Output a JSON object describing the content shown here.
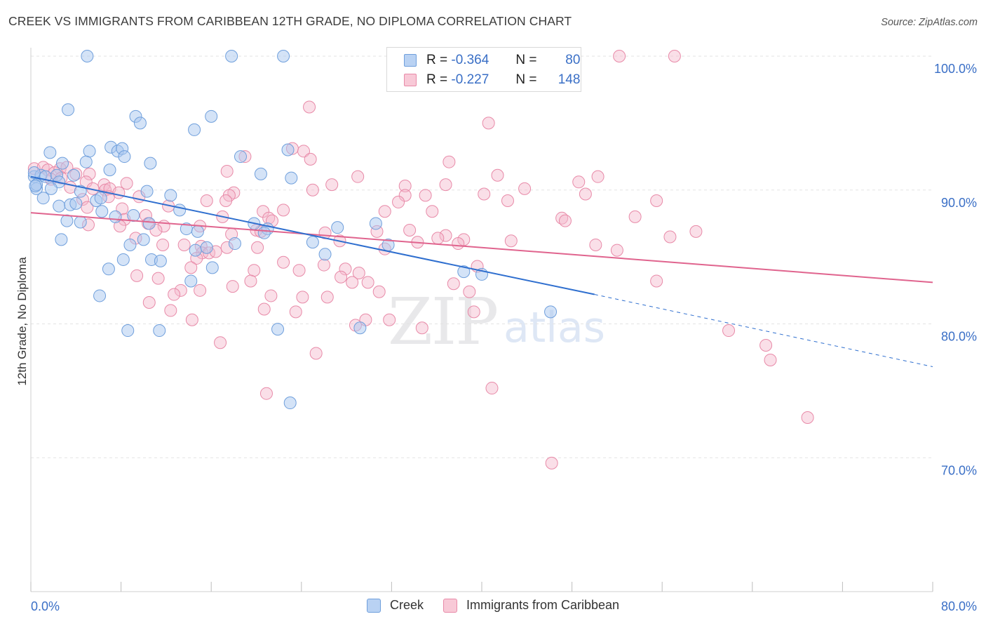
{
  "header": {
    "title": "CREEK VS IMMIGRANTS FROM CARIBBEAN 12TH GRADE, NO DIPLOMA CORRELATION CHART",
    "source": "Source: ZipAtlas.com"
  },
  "legend_box": {
    "rows": [
      {
        "r_label": "R =",
        "r_value": "-0.364",
        "n_label": "N =",
        "n_value": "80"
      },
      {
        "r_label": "R =",
        "r_value": "-0.227",
        "n_label": "N =",
        "n_value": "148"
      }
    ]
  },
  "watermark": {
    "zip": "ZIP",
    "atlas": "atlas"
  },
  "colors": {
    "creek_fill": "#a9c8f0",
    "creek_stroke": "#6f9fdc",
    "creek_line": "#2f6fcf",
    "carib_fill": "#f5b8cc",
    "carib_stroke": "#e88aa8",
    "carib_line": "#e0648e",
    "axis_label": "#3a6fc6",
    "grid": "#e3e3e3"
  },
  "chart_data": {
    "type": "scatter",
    "title": "CREEK VS IMMIGRANTS FROM CARIBBEAN 12TH GRADE, NO DIPLOMA CORRELATION CHART",
    "xlabel": "",
    "ylabel": "12th Grade, No Diploma",
    "xlim": [
      0,
      80
    ],
    "ylim": [
      60,
      100
    ],
    "x_tick_labels": [
      "0.0%",
      "80.0%"
    ],
    "y_ticks": [
      {
        "value": 100,
        "label": "100.0%"
      },
      {
        "value": 90,
        "label": "90.0%"
      },
      {
        "value": 80,
        "label": "80.0%"
      },
      {
        "value": 70,
        "label": "70.0%"
      }
    ],
    "grid": true,
    "legend_position": "bottom",
    "series": [
      {
        "name": "Creek",
        "r": -0.364,
        "n": 80,
        "trend": {
          "x0": 0,
          "y0": 91.0,
          "x1": 50,
          "y1": 82.2,
          "dash_to_x": 80,
          "dash_to_y": 76.8
        },
        "points": [
          [
            5,
            100
          ],
          [
            17.8,
            100
          ],
          [
            22.4,
            100
          ],
          [
            3.3,
            96
          ],
          [
            9.3,
            95.5
          ],
          [
            16,
            95.5
          ],
          [
            9.7,
            95
          ],
          [
            14.5,
            94.5
          ],
          [
            1.7,
            92.8
          ],
          [
            5.2,
            92.9
          ],
          [
            7.1,
            93.2
          ],
          [
            7.7,
            92.9
          ],
          [
            8.1,
            93.1
          ],
          [
            8.3,
            92.5
          ],
          [
            18.6,
            92.5
          ],
          [
            22.8,
            93
          ],
          [
            2.8,
            92
          ],
          [
            4.9,
            92.1
          ],
          [
            10.6,
            92
          ],
          [
            7,
            91.5
          ],
          [
            20.4,
            91.2
          ],
          [
            23.1,
            90.9
          ],
          [
            0.3,
            91
          ],
          [
            0.9,
            91.1
          ],
          [
            1.3,
            91
          ],
          [
            2.3,
            91.1
          ],
          [
            3.8,
            91.1
          ],
          [
            2.5,
            90.6
          ],
          [
            0.5,
            90.1
          ],
          [
            1.8,
            90.1
          ],
          [
            0.5,
            90.4
          ],
          [
            4.4,
            89.9
          ],
          [
            10.3,
            89.9
          ],
          [
            12.4,
            89.6
          ],
          [
            1.1,
            89.4
          ],
          [
            5.8,
            89.2
          ],
          [
            6.2,
            89.4
          ],
          [
            2.5,
            88.8
          ],
          [
            3.5,
            88.9
          ],
          [
            4,
            89
          ],
          [
            13.2,
            88.5
          ],
          [
            6.3,
            88.4
          ],
          [
            7.5,
            88
          ],
          [
            9.1,
            88.1
          ],
          [
            3.2,
            87.7
          ],
          [
            4.4,
            87.6
          ],
          [
            10.5,
            87.5
          ],
          [
            19.8,
            87.5
          ],
          [
            13.8,
            87.1
          ],
          [
            14.8,
            86.9
          ],
          [
            21,
            87.1
          ],
          [
            27.2,
            87.2
          ],
          [
            30.6,
            87.5
          ],
          [
            2.7,
            86.3
          ],
          [
            8.8,
            85.9
          ],
          [
            10,
            86.3
          ],
          [
            14.6,
            85.5
          ],
          [
            15.6,
            85.7
          ],
          [
            18.1,
            86
          ],
          [
            25,
            86.1
          ],
          [
            31.7,
            85.9
          ],
          [
            26.1,
            85.2
          ],
          [
            8.2,
            84.8
          ],
          [
            10.7,
            84.8
          ],
          [
            11.5,
            84.7
          ],
          [
            6.9,
            84.1
          ],
          [
            16.1,
            84.2
          ],
          [
            38.4,
            83.9
          ],
          [
            40,
            83.7
          ],
          [
            14.2,
            83.2
          ],
          [
            6.1,
            82.1
          ],
          [
            46.1,
            80.9
          ],
          [
            8.6,
            79.5
          ],
          [
            11.4,
            79.5
          ],
          [
            21.9,
            79.6
          ],
          [
            29.2,
            79.7
          ],
          [
            23,
            74.1
          ],
          [
            0.4,
            90.3
          ],
          [
            0.3,
            91.3
          ],
          [
            20.7,
            86.8
          ]
        ]
      },
      {
        "name": "Immigrants from Caribbean",
        "r": -0.227,
        "n": 148,
        "trend": {
          "x0": 0,
          "y0": 88.3,
          "x1": 80,
          "y1": 83.1
        },
        "points": [
          [
            52.2,
            100
          ],
          [
            57.1,
            100
          ],
          [
            24.7,
            96.2
          ],
          [
            40.6,
            95
          ],
          [
            23.2,
            93.1
          ],
          [
            24.2,
            92.9
          ],
          [
            19,
            92.5
          ],
          [
            24.8,
            92.3
          ],
          [
            37.1,
            92.1
          ],
          [
            0.3,
            91.6
          ],
          [
            1.1,
            91.7
          ],
          [
            1.5,
            91.5
          ],
          [
            2.6,
            91.6
          ],
          [
            3.2,
            91.7
          ],
          [
            2.1,
            91.3
          ],
          [
            4,
            91.2
          ],
          [
            5.2,
            91.2
          ],
          [
            17.4,
            91.4
          ],
          [
            41.4,
            91.1
          ],
          [
            29,
            91
          ],
          [
            50.3,
            91
          ],
          [
            1.8,
            90.8
          ],
          [
            2.7,
            90.9
          ],
          [
            4.9,
            90.6
          ],
          [
            6.5,
            90.4
          ],
          [
            8.5,
            90.5
          ],
          [
            26.7,
            90.4
          ],
          [
            33.2,
            90.3
          ],
          [
            36.8,
            90.4
          ],
          [
            48.6,
            90.6
          ],
          [
            3.5,
            90.2
          ],
          [
            5.5,
            90.1
          ],
          [
            6.6,
            90
          ],
          [
            7,
            90.1
          ],
          [
            25,
            90
          ],
          [
            43.8,
            90.1
          ],
          [
            7.8,
            89.8
          ],
          [
            18,
            89.8
          ],
          [
            17.6,
            89.6
          ],
          [
            33.2,
            89.6
          ],
          [
            35,
            89.6
          ],
          [
            40.2,
            89.7
          ],
          [
            49.2,
            89.7
          ],
          [
            4.6,
            89.3
          ],
          [
            6.9,
            89.5
          ],
          [
            9.6,
            89.5
          ],
          [
            15.6,
            89.2
          ],
          [
            17.3,
            89.2
          ],
          [
            32.6,
            89.1
          ],
          [
            42.3,
            89.2
          ],
          [
            55.5,
            89.2
          ],
          [
            5,
            88.7
          ],
          [
            8.1,
            88.6
          ],
          [
            12.2,
            88.8
          ],
          [
            22.4,
            88.5
          ],
          [
            20.6,
            88.4
          ],
          [
            31.4,
            88.4
          ],
          [
            35.6,
            88.4
          ],
          [
            10.2,
            88.1
          ],
          [
            17,
            88
          ],
          [
            21.1,
            87.9
          ],
          [
            47.1,
            87.9
          ],
          [
            8.3,
            87.8
          ],
          [
            21.4,
            87.7
          ],
          [
            47.4,
            87.7
          ],
          [
            53.6,
            88
          ],
          [
            10.4,
            87.5
          ],
          [
            5.1,
            87.4
          ],
          [
            7.9,
            87.3
          ],
          [
            11.8,
            87.3
          ],
          [
            15,
            87.3
          ],
          [
            20,
            87
          ],
          [
            11.1,
            87
          ],
          [
            20.4,
            86.9
          ],
          [
            17.8,
            86.7
          ],
          [
            30.7,
            86.9
          ],
          [
            26.1,
            86.8
          ],
          [
            33.6,
            87
          ],
          [
            36.8,
            86.6
          ],
          [
            59,
            86.9
          ],
          [
            56.7,
            86.5
          ],
          [
            36.1,
            86.4
          ],
          [
            9.3,
            86.4
          ],
          [
            38.4,
            86.3
          ],
          [
            27.4,
            86.2
          ],
          [
            34.3,
            86.1
          ],
          [
            37.9,
            86
          ],
          [
            42.6,
            86.2
          ],
          [
            15.1,
            85.8
          ],
          [
            17.4,
            85.7
          ],
          [
            11.7,
            85.9
          ],
          [
            13.6,
            85.9
          ],
          [
            20.1,
            85.7
          ],
          [
            31.4,
            85.6
          ],
          [
            50.1,
            85.9
          ],
          [
            52,
            85.5
          ],
          [
            15.2,
            85.3
          ],
          [
            15.8,
            85.3
          ],
          [
            16.4,
            85.4
          ],
          [
            14.7,
            84.9
          ],
          [
            22.4,
            84.6
          ],
          [
            26,
            84.4
          ],
          [
            27.9,
            84.1
          ],
          [
            14.2,
            84.2
          ],
          [
            19.8,
            84
          ],
          [
            23.8,
            84
          ],
          [
            29.1,
            83.8
          ],
          [
            39.6,
            84.3
          ],
          [
            27.5,
            83.5
          ],
          [
            11.3,
            83.4
          ],
          [
            9.4,
            83.6
          ],
          [
            19.5,
            83.2
          ],
          [
            28.5,
            83.1
          ],
          [
            29.9,
            83.1
          ],
          [
            37.5,
            83
          ],
          [
            55.5,
            83.2
          ],
          [
            15,
            82.5
          ],
          [
            13.3,
            82.5
          ],
          [
            17.9,
            82.8
          ],
          [
            30.9,
            82.4
          ],
          [
            38.9,
            82.4
          ],
          [
            21.3,
            82.1
          ],
          [
            24.1,
            82
          ],
          [
            26.3,
            82
          ],
          [
            12.7,
            82.2
          ],
          [
            10.5,
            81.6
          ],
          [
            20.7,
            81.1
          ],
          [
            12.4,
            81
          ],
          [
            23.5,
            80.9
          ],
          [
            39.3,
            80.9
          ],
          [
            14.3,
            80.3
          ],
          [
            29.7,
            80.3
          ],
          [
            31.8,
            80.3
          ],
          [
            28.8,
            79.9
          ],
          [
            34.7,
            79.7
          ],
          [
            61.9,
            79.5
          ],
          [
            16.8,
            78.6
          ],
          [
            65.2,
            78.4
          ],
          [
            25.3,
            77.8
          ],
          [
            65.6,
            77.3
          ],
          [
            40.9,
            75.2
          ],
          [
            20.9,
            74.8
          ],
          [
            68.9,
            73
          ],
          [
            46.2,
            69.6
          ]
        ]
      }
    ]
  },
  "bottom_legend": {
    "items": [
      "Creek",
      "Immigrants from Caribbean"
    ]
  }
}
